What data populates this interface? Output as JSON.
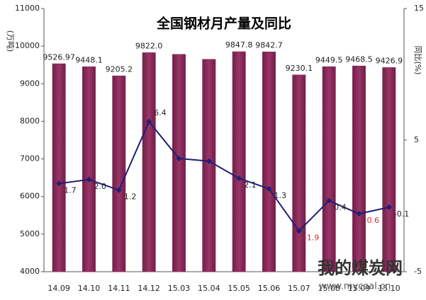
{
  "chart_data": {
    "type": "bar-line",
    "title": "全国钢材月产量及同比",
    "ylabel": "(万吨)",
    "y2label": "同比(%)",
    "categories": [
      "14.09",
      "14.10",
      "14.11",
      "14.12",
      "15.03",
      "15.04",
      "15.05",
      "15.06",
      "15.07",
      "15.08",
      "15.09",
      "15.10"
    ],
    "series": [
      {
        "type": "bar",
        "color": "#8c2b5c",
        "values": [
          9526.97,
          9448.1,
          9205.2,
          9822.0,
          9777,
          9645,
          9847.8,
          9842.7,
          9230.1,
          9449.5,
          9468.5,
          9426.9
        ],
        "value_labels": [
          "9526.97",
          "9448.1",
          "9205.2",
          "9822.0",
          null,
          null,
          "9847.8",
          "9842.7",
          "9230.1",
          "9449.5",
          "9468.5",
          "9426.9"
        ]
      },
      {
        "type": "line",
        "axis": "y2",
        "color": "#1f1f78",
        "values": [
          1.7,
          2.0,
          1.2,
          6.4,
          3.6,
          3.4,
          2.1,
          1.3,
          -1.9,
          0.4,
          -0.6,
          -0.1
        ],
        "value_labels": [
          "1.7",
          "2.0",
          "1.2",
          "6.4",
          null,
          null,
          "2.1",
          "1.3",
          "-1.9",
          "0.4",
          "-0.6",
          "-0.1"
        ],
        "label_colors": [
          "#222",
          "#222",
          "#222",
          "#222",
          "#222",
          "#222",
          "#222",
          "#222",
          "#d03030",
          "#222",
          "#d03030",
          "#222"
        ]
      }
    ],
    "ylim": [
      4000,
      11000
    ],
    "yticks": [
      4000,
      5000,
      6000,
      7000,
      8000,
      9000,
      10000,
      11000
    ],
    "y2lim": [
      -5,
      15
    ],
    "y2ticks": [
      -5,
      5,
      15
    ],
    "watermark": {
      "title": "我的煤炭网",
      "url": "www.mycoal.cn"
    }
  }
}
